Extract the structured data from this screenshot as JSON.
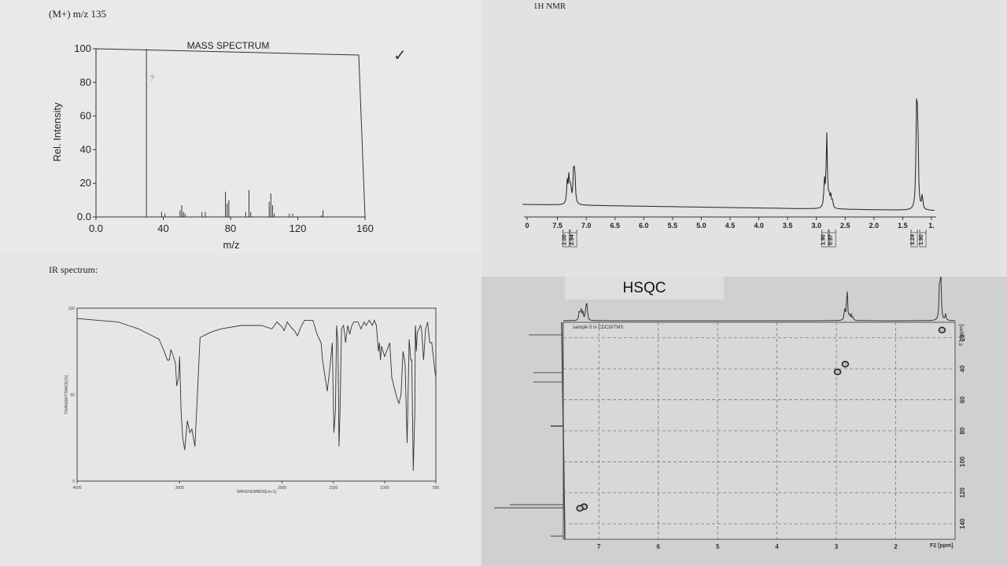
{
  "ms": {
    "header": "(M+) m/z 135",
    "check": "✓",
    "note": "?"
  },
  "ir": {
    "header": "IR spectrum:"
  },
  "nmr": {
    "header": "1H NMR"
  },
  "hsqc": {
    "title": "HSQC",
    "sample_label": "sample 5 in CDCl3/TMS",
    "f1_label": "F1 [ppm]",
    "f2_label": "F2 [ppm]"
  },
  "chart_data": [
    {
      "id": "mass",
      "type": "bar",
      "title": "MASS SPECTRUM",
      "xlabel": "m/z",
      "ylabel": "Rel. Intensity",
      "xlim": [
        0,
        160
      ],
      "ylim": [
        0,
        100
      ],
      "xticks": [
        "0.0",
        "40",
        "80",
        "120",
        "160"
      ],
      "yticks": [
        "0.0",
        "20",
        "40",
        "60",
        "80",
        "100"
      ],
      "x": [
        30,
        39,
        41,
        50,
        51,
        52,
        53,
        63,
        65,
        77,
        78,
        79,
        89,
        91,
        92,
        103,
        104,
        105,
        106,
        115,
        117,
        134,
        135
      ],
      "values": [
        100,
        3,
        2,
        4,
        7,
        3,
        2,
        3,
        3,
        15,
        8,
        10,
        3,
        16,
        3,
        9,
        14,
        7,
        2,
        2,
        2,
        1,
        4
      ]
    },
    {
      "id": "ir",
      "type": "line",
      "ylabel": "TRANSMITTANCE[%]",
      "xlabel": "WAVENUMBER[cm-1]",
      "xlim": [
        4000,
        500
      ],
      "ylim": [
        0,
        100
      ],
      "xticks": [
        "4000",
        "3000",
        "2000",
        "1500",
        "1000",
        "500"
      ],
      "yticks": [
        "0",
        "50",
        "100"
      ],
      "series": [
        {
          "x": [
            4000,
            3800,
            3600,
            3500,
            3400,
            3300,
            3200,
            3150,
            3120,
            3100,
            3085,
            3060,
            3040,
            3028,
            3010,
            3000,
            2985,
            2970,
            2950,
            2925,
            2900,
            2880,
            2850,
            2800,
            2700,
            2600,
            2400,
            2200,
            2100,
            2050,
            2000,
            1980,
            1950,
            1900,
            1880,
            1850,
            1810,
            1780,
            1740,
            1700,
            1660,
            1620,
            1605,
            1585,
            1560,
            1540,
            1510,
            1495,
            1480,
            1468,
            1455,
            1445,
            1435,
            1420,
            1400,
            1380,
            1360,
            1340,
            1320,
            1300,
            1260,
            1230,
            1200,
            1180,
            1150,
            1120,
            1100,
            1080,
            1060,
            1050,
            1040,
            1030,
            1000,
            950,
            930,
            910,
            880,
            860,
            840,
            820,
            800,
            780,
            760,
            745,
            735,
            720,
            705,
            700,
            698,
            690,
            680,
            650,
            640,
            620,
            600,
            580,
            560,
            540,
            510,
            500
          ],
          "y": [
            94,
            93,
            92,
            90,
            88,
            85,
            82,
            75,
            70,
            70,
            76,
            72,
            68,
            55,
            60,
            72,
            40,
            25,
            18,
            35,
            28,
            30,
            20,
            83,
            86,
            88,
            90,
            90,
            88,
            92,
            89,
            87,
            92,
            88,
            87,
            84,
            90,
            93,
            93,
            93,
            85,
            80,
            70,
            62,
            52,
            62,
            80,
            28,
            40,
            90,
            80,
            20,
            40,
            88,
            90,
            80,
            90,
            85,
            90,
            92,
            92,
            88,
            92,
            90,
            93,
            90,
            93,
            90,
            75,
            80,
            70,
            78,
            72,
            80,
            60,
            55,
            48,
            45,
            50,
            75,
            68,
            22,
            82,
            70,
            70,
            6,
            40,
            88,
            90,
            75,
            86,
            90,
            88,
            70,
            88,
            92,
            80,
            80,
            64,
            60
          ]
        }
      ]
    },
    {
      "id": "nmr",
      "type": "line",
      "xlabel": "ppm",
      "xlim": [
        8.0,
        1.0
      ],
      "xticks": [
        "0",
        "7.5",
        "7.0",
        "6.5",
        "6.0",
        "5.5",
        "5.0",
        "4.5",
        "4.0",
        "3.5",
        "3.0",
        "2.5",
        "2.0",
        "1.5",
        "1."
      ],
      "peaks": [
        {
          "ppm": 7.33,
          "height": 28
        },
        {
          "ppm": 7.3,
          "height": 35
        },
        {
          "ppm": 7.27,
          "height": 22
        },
        {
          "ppm": 7.22,
          "height": 36
        },
        {
          "ppm": 7.2,
          "height": 42
        },
        {
          "ppm": 2.86,
          "height": 33
        },
        {
          "ppm": 2.82,
          "height": 95
        },
        {
          "ppm": 2.78,
          "height": 13
        },
        {
          "ppm": 2.75,
          "height": 15
        },
        {
          "ppm": 2.72,
          "height": 9
        },
        {
          "ppm": 1.26,
          "height": 112
        },
        {
          "ppm": 1.24,
          "height": 112
        },
        {
          "ppm": 1.16,
          "height": 18
        }
      ],
      "integrals": [
        {
          "ppm": 7.35,
          "value": "2.00"
        },
        {
          "ppm": 7.22,
          "value": "2.94"
        },
        {
          "ppm": 2.85,
          "value": "1.90"
        },
        {
          "ppm": 2.72,
          "value": "0.97"
        },
        {
          "ppm": 1.3,
          "value": "3.24"
        },
        {
          "ppm": 1.15,
          "value": "1.90"
        }
      ]
    },
    {
      "id": "hsqc",
      "type": "scatter",
      "title": "HSQC",
      "xlabel": "F2 [ppm]",
      "ylabel": "F1 [ppm]",
      "xlim": [
        7.6,
        1.0
      ],
      "ylim": [
        10,
        150
      ],
      "xticks": [
        "7",
        "6",
        "5",
        "4",
        "3",
        "2"
      ],
      "yticks": [
        "20",
        "40",
        "60",
        "80",
        "100",
        "120",
        "140"
      ],
      "points": [
        {
          "f2": 1.22,
          "f1": 15
        },
        {
          "f2": 2.85,
          "f1": 37
        },
        {
          "f2": 2.98,
          "f1": 42
        },
        {
          "f2": 7.25,
          "f1": 129
        },
        {
          "f2": 7.32,
          "f1": 130
        }
      ]
    }
  ]
}
